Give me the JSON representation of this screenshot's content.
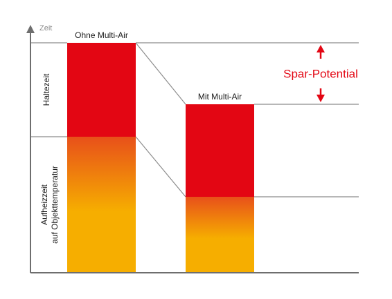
{
  "chart_data": {
    "type": "bar",
    "title": "",
    "y_axis_label": "Zeit",
    "y_segment_labels": [
      "Haltezeit",
      "Aufheizzeit\nauf Objekttemperatur"
    ],
    "categories": [
      "Ohne Multi-Air",
      "Mit Multi-Air"
    ],
    "series": [
      {
        "name": "Aufheizzeit auf Objekttemperatur",
        "values": [
          197,
          110
        ]
      },
      {
        "name": "Haltezeit",
        "values": [
          136,
          134
        ]
      }
    ],
    "totals": [
      333,
      244
    ],
    "ylim": [
      0,
      340
    ],
    "annotation": "Spar-Potential",
    "colors": {
      "hold": "#e30613",
      "heat_top": "#e8501a",
      "heat_bottom": "#f6ae00",
      "axis": "#6e6e6e",
      "guide": "#8c8c8c",
      "annotation": "#e30613",
      "label_text": "#1a1a1a"
    },
    "grid": false,
    "legend": "none"
  }
}
